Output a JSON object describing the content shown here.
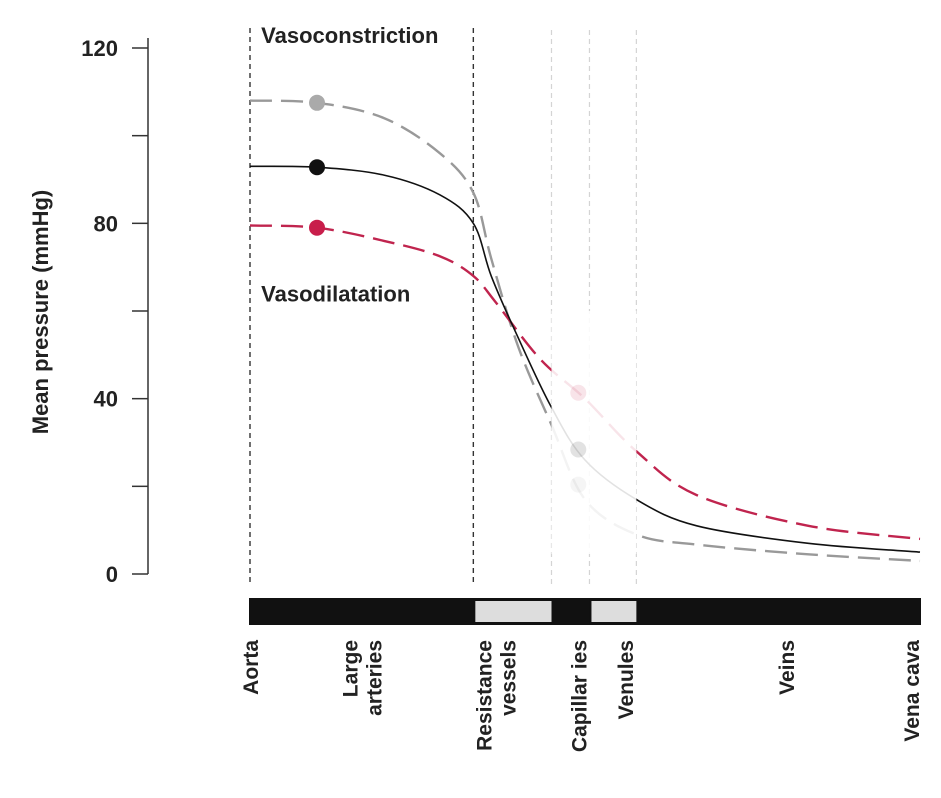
{
  "chart_data": {
    "type": "line",
    "title": "",
    "ylabel": "Mean pressure (mmHg)",
    "xlabel": "",
    "ylim": [
      0,
      120
    ],
    "yticks": [
      0,
      20,
      40,
      60,
      80,
      100,
      120
    ],
    "ytick_labels": [
      {
        "value": 0,
        "text": "0"
      },
      {
        "value": 40,
        "text": "40"
      },
      {
        "value": 80,
        "text": "80"
      },
      {
        "value": 120,
        "text": "120"
      }
    ],
    "grid": false,
    "x_segments": [
      {
        "name": "Aorta/Large arteries",
        "start": 0,
        "end": 1,
        "fill": "#111111"
      },
      {
        "name": "Resistance vessels",
        "start": 1,
        "end": 1.35,
        "fill": "#dddddd"
      },
      {
        "name": "Capillaries",
        "start": 1.35,
        "end": 1.52,
        "fill": "#111111"
      },
      {
        "name": "Venules",
        "start": 1.52,
        "end": 1.73,
        "fill": "#dddddd"
      },
      {
        "name": "Veins/Vena cava",
        "start": 1.73,
        "end": 3.0,
        "fill": "#111111"
      }
    ],
    "x_labels": [
      {
        "text": [
          "Aorta"
        ],
        "x": 0.0
      },
      {
        "text": [
          "Large",
          "arteries"
        ],
        "x": 0.5
      },
      {
        "text": [
          "Resistance",
          "vessels"
        ],
        "x": 1.1
      },
      {
        "text": [
          "Capillar ies"
        ],
        "x": 1.47
      },
      {
        "text": [
          "Venules"
        ],
        "x": 1.68
      },
      {
        "text": [
          "Veins"
        ],
        "x": 2.4
      },
      {
        "text": [
          "Vena cava"
        ],
        "x": 2.96
      }
    ],
    "boundaries": [
      {
        "x": 0.0,
        "style": "dark"
      },
      {
        "x": 1.0,
        "style": "dark"
      },
      {
        "x": 1.35,
        "style": "light"
      },
      {
        "x": 1.52,
        "style": "light"
      },
      {
        "x": 1.73,
        "style": "light"
      }
    ],
    "annotations": [
      {
        "text": "Vasoconstriction",
        "x": 0.05,
        "y": 123
      },
      {
        "text": "Vasodilatation",
        "x": 0.05,
        "y": 64
      }
    ],
    "faded_region": [
      1.35,
      1.73
    ],
    "marker_x": 0.3,
    "series": [
      {
        "key": "vasoconstriction",
        "color": "#999999",
        "dash": "dashed",
        "marker_fill": "#aaaaaa",
        "points": [
          [
            0,
            108
          ],
          [
            0.3,
            107.5
          ],
          [
            0.6,
            104
          ],
          [
            0.85,
            96
          ],
          [
            1.0,
            87
          ],
          [
            1.08,
            72
          ],
          [
            1.2,
            52
          ],
          [
            1.35,
            34
          ],
          [
            1.5,
            17
          ],
          [
            1.73,
            9
          ],
          [
            2.0,
            6.7
          ],
          [
            2.5,
            4.5
          ],
          [
            3.0,
            3
          ]
        ]
      },
      {
        "key": "normal",
        "color": "#111111",
        "dash": "solid",
        "marker_fill": "#111111",
        "points": [
          [
            0,
            93
          ],
          [
            0.3,
            92.8
          ],
          [
            0.6,
            91
          ],
          [
            0.85,
            86.5
          ],
          [
            1.0,
            80
          ],
          [
            1.08,
            68
          ],
          [
            1.2,
            54
          ],
          [
            1.35,
            38
          ],
          [
            1.5,
            26
          ],
          [
            1.73,
            17
          ],
          [
            2.0,
            11
          ],
          [
            2.5,
            7
          ],
          [
            3.0,
            5
          ]
        ]
      },
      {
        "key": "vasodilatation",
        "color": "#c0244e",
        "dash": "dashed",
        "marker_fill": "#c81e4b",
        "points": [
          [
            0,
            79.5
          ],
          [
            0.3,
            79
          ],
          [
            0.6,
            76
          ],
          [
            0.85,
            72.5
          ],
          [
            1.0,
            68
          ],
          [
            1.1,
            62
          ],
          [
            1.3,
            49
          ],
          [
            1.5,
            40
          ],
          [
            1.73,
            28
          ],
          [
            2.0,
            18
          ],
          [
            2.5,
            11
          ],
          [
            3.0,
            8
          ]
        ]
      }
    ]
  }
}
